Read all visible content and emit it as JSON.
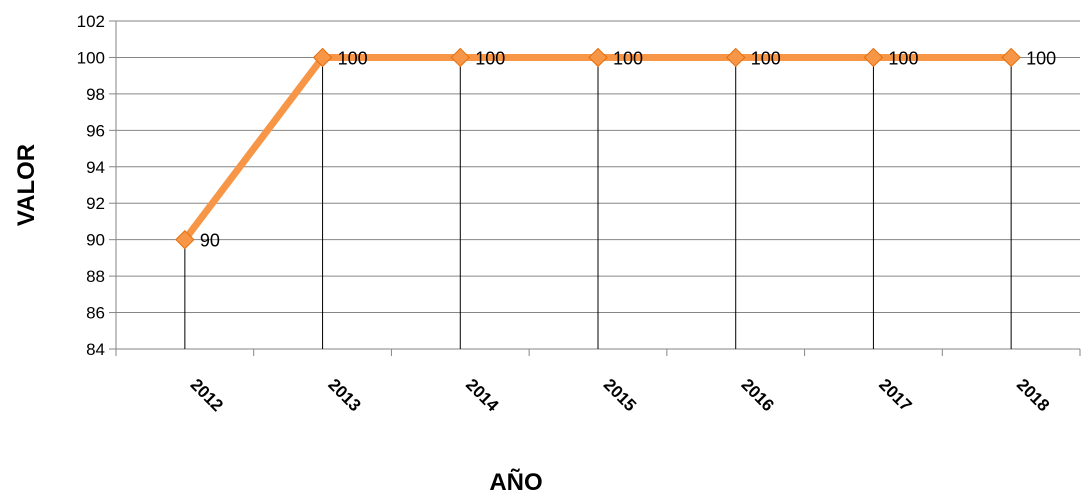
{
  "chart_data": {
    "type": "line",
    "categories": [
      "2012",
      "2013",
      "2014",
      "2015",
      "2016",
      "2017",
      "2018"
    ],
    "series": [
      {
        "values": [
          90,
          100,
          100,
          100,
          100,
          100,
          100
        ]
      }
    ],
    "data_labels": [
      "90",
      "100",
      "100",
      "100",
      "100",
      "100",
      "100"
    ],
    "y_ticks": [
      "84",
      "86",
      "88",
      "90",
      "92",
      "94",
      "96",
      "98",
      "100",
      "102"
    ],
    "xlabel": "AÑO",
    "ylabel": "VALOR",
    "ylim": [
      84,
      102
    ],
    "grid": "horizontal",
    "drop_lines": true,
    "legend": "none",
    "colors": {
      "line": "#F79646",
      "marker": "#F79646",
      "grid": "#868686",
      "drop_line": "#000000"
    }
  }
}
